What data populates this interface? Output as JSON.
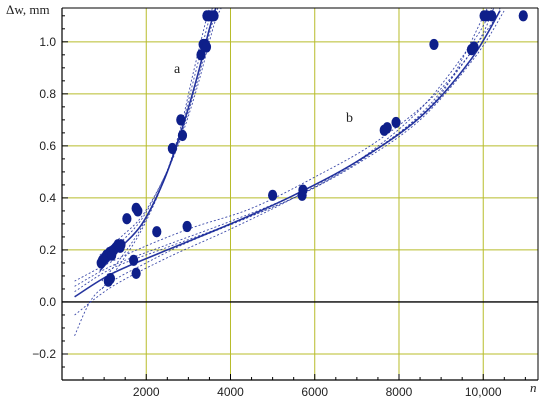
{
  "chart_data": {
    "type": "scatter",
    "title": "",
    "xlabel": "n",
    "ylabel": "Δw, mm",
    "xlim": [
      0,
      11300
    ],
    "ylim": [
      -0.3,
      1.13
    ],
    "x_ticks": [
      2000,
      4000,
      6000,
      8000,
      10000
    ],
    "x_tick_labels": [
      "2000",
      "4000",
      "6000",
      "8000",
      "10,000"
    ],
    "y_ticks": [
      -0.2,
      0.0,
      0.2,
      0.4,
      0.6,
      0.8,
      1.0
    ],
    "y_tick_labels": [
      "−0.2",
      "0.0",
      "0.2",
      "0.4",
      "0.6",
      "0.8",
      "1.0"
    ],
    "grid": true,
    "colors": {
      "grid": "#b8bc2a",
      "points": "#0e1f8a",
      "curves": "#1a2a9a",
      "zero_line": "#000000"
    },
    "series": [
      {
        "name": "a",
        "points": [
          [
            930,
            0.15
          ],
          [
            960,
            0.16
          ],
          [
            1020,
            0.17
          ],
          [
            1060,
            0.18
          ],
          [
            1130,
            0.19
          ],
          [
            1180,
            0.18
          ],
          [
            1230,
            0.2
          ],
          [
            1290,
            0.21
          ],
          [
            1330,
            0.22
          ],
          [
            1380,
            0.21
          ],
          [
            1400,
            0.22
          ],
          [
            1540,
            0.32
          ],
          [
            1760,
            0.36
          ],
          [
            1800,
            0.35
          ],
          [
            1100,
            0.08
          ],
          [
            1150,
            0.09
          ],
          [
            1700,
            0.16
          ],
          [
            1760,
            0.11
          ],
          [
            2620,
            0.59
          ],
          [
            2820,
            0.7
          ],
          [
            2860,
            0.64
          ],
          [
            3300,
            0.95
          ],
          [
            3350,
            0.99
          ],
          [
            3400,
            0.99
          ],
          [
            3430,
            0.98
          ],
          [
            3440,
            1.1
          ],
          [
            3500,
            1.1
          ],
          [
            3560,
            1.1
          ],
          [
            3610,
            1.1
          ]
        ],
        "fit_curves": [
          [
            [
              900,
              0.12
            ],
            [
              1400,
              0.21
            ],
            [
              1900,
              0.3
            ],
            [
              2400,
              0.46
            ],
            [
              2800,
              0.64
            ],
            [
              3200,
              0.86
            ],
            [
              3500,
              1.05
            ],
            [
              3650,
              1.13
            ]
          ],
          [
            [
              900,
              0.15
            ],
            [
              1400,
              0.23
            ],
            [
              1900,
              0.32
            ],
            [
              2400,
              0.47
            ],
            [
              2800,
              0.63
            ],
            [
              3200,
              0.84
            ],
            [
              3550,
              1.06
            ],
            [
              3700,
              1.13
            ]
          ],
          [
            [
              950,
              0.08
            ],
            [
              1400,
              0.17
            ],
            [
              1900,
              0.29
            ],
            [
              2400,
              0.46
            ],
            [
              2800,
              0.65
            ],
            [
              3150,
              0.87
            ],
            [
              3450,
              1.06
            ],
            [
              3570,
              1.13
            ]
          ],
          [
            [
              900,
              0.18
            ],
            [
              1400,
              0.25
            ],
            [
              1900,
              0.33
            ],
            [
              2400,
              0.47
            ],
            [
              2800,
              0.62
            ],
            [
              3200,
              0.82
            ],
            [
              3600,
              1.06
            ],
            [
              3780,
              1.13
            ]
          ],
          [
            [
              950,
              0.05
            ],
            [
              1400,
              0.15
            ],
            [
              1900,
              0.28
            ],
            [
              2400,
              0.46
            ],
            [
              2800,
              0.66
            ],
            [
              3100,
              0.87
            ],
            [
              3400,
              1.07
            ],
            [
              3500,
              1.13
            ]
          ]
        ]
      },
      {
        "name": "b",
        "points": [
          [
            2250,
            0.27
          ],
          [
            2970,
            0.29
          ],
          [
            5000,
            0.41
          ],
          [
            5700,
            0.41
          ],
          [
            5720,
            0.43
          ],
          [
            7650,
            0.66
          ],
          [
            7720,
            0.67
          ],
          [
            7930,
            0.69
          ],
          [
            8830,
            0.99
          ],
          [
            9720,
            0.97
          ],
          [
            9780,
            0.98
          ],
          [
            10020,
            1.1
          ],
          [
            10080,
            1.1
          ],
          [
            10200,
            1.1
          ],
          [
            10950,
            1.1
          ]
        ],
        "fit_curves": [
          [
            [
              300,
              0.02
            ],
            [
              1200,
              0.11
            ],
            [
              2500,
              0.2
            ],
            [
              4000,
              0.3
            ],
            [
              5500,
              0.41
            ],
            [
              7000,
              0.54
            ],
            [
              8500,
              0.71
            ],
            [
              9700,
              0.93
            ],
            [
              10400,
              1.12
            ]
          ],
          [
            [
              300,
              0.04
            ],
            [
              1200,
              0.13
            ],
            [
              2500,
              0.21
            ],
            [
              4000,
              0.3
            ],
            [
              5500,
              0.4
            ],
            [
              7000,
              0.53
            ],
            [
              8500,
              0.7
            ],
            [
              9800,
              0.94
            ],
            [
              10500,
              1.12
            ]
          ],
          [
            [
              300,
              -0.13
            ],
            [
              700,
              0.01
            ],
            [
              1200,
              0.08
            ],
            [
              2000,
              0.15
            ],
            [
              3000,
              0.23
            ],
            [
              4500,
              0.33
            ],
            [
              6000,
              0.44
            ],
            [
              7500,
              0.59
            ],
            [
              9000,
              0.8
            ],
            [
              10100,
              1.13
            ]
          ],
          [
            [
              300,
              0.06
            ],
            [
              1200,
              0.14
            ],
            [
              2500,
              0.22
            ],
            [
              4000,
              0.31
            ],
            [
              5500,
              0.41
            ],
            [
              7000,
              0.54
            ],
            [
              8500,
              0.72
            ],
            [
              9800,
              0.98
            ],
            [
              10250,
              1.13
            ]
          ],
          [
            [
              300,
              0.08
            ],
            [
              1500,
              0.18
            ],
            [
              3000,
              0.28
            ],
            [
              4500,
              0.36
            ],
            [
              6000,
              0.48
            ],
            [
              7500,
              0.62
            ],
            [
              9000,
              0.82
            ],
            [
              10200,
              1.07
            ],
            [
              10400,
              1.13
            ]
          ],
          [
            [
              300,
              -0.05
            ],
            [
              1200,
              0.06
            ],
            [
              2500,
              0.17
            ],
            [
              4000,
              0.28
            ],
            [
              5500,
              0.4
            ],
            [
              7000,
              0.54
            ],
            [
              8500,
              0.74
            ],
            [
              9800,
              1.01
            ],
            [
              10200,
              1.13
            ]
          ]
        ]
      }
    ]
  }
}
